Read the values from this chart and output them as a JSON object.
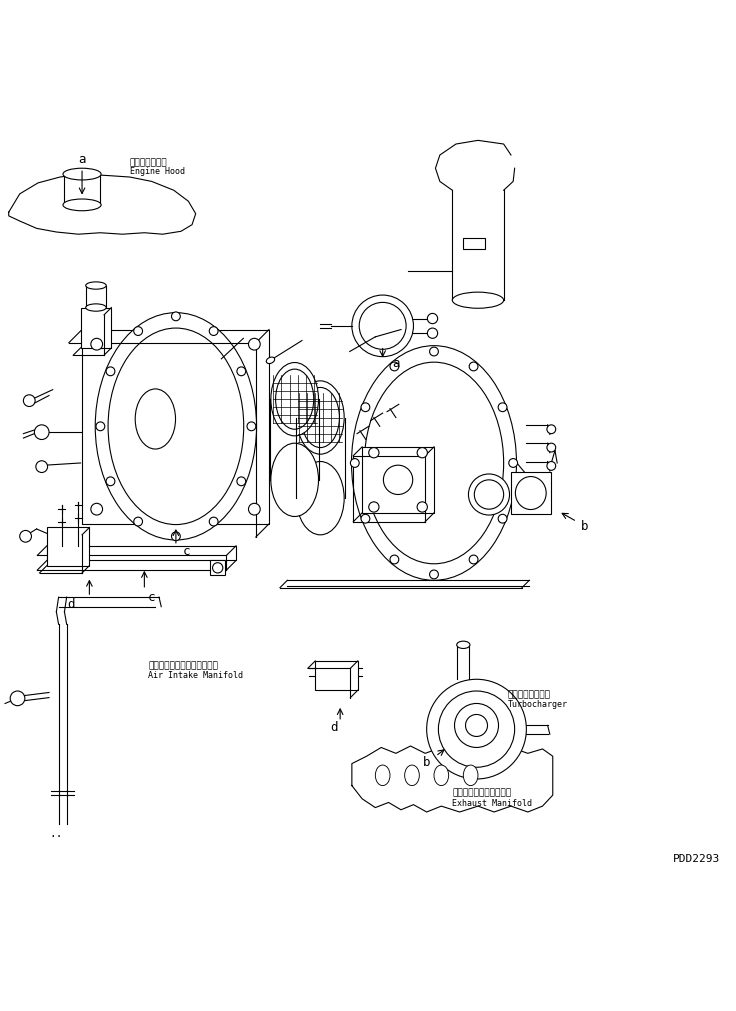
{
  "bg_color": "#ffffff",
  "line_color": "#000000",
  "figure_width": 7.36,
  "figure_height": 10.11,
  "dpi": 100,
  "part_code": "PDD2293",
  "labels": {
    "engine_hood_jp": "エンジンフード",
    "engine_hood_en": "Engine Hood",
    "air_intake_jp": "エアーインテークマニホルド",
    "air_intake_en": "Air Intake Manifold",
    "turbocharger_jp": "ターボチャージャ",
    "turbocharger_en": "Turbocharger",
    "exhaust_jp": "エキゾーストマニホルド",
    "exhaust_en": "Exhaust Manifold"
  }
}
